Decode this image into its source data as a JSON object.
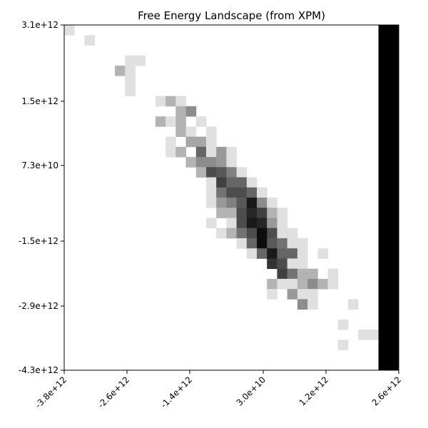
{
  "chart_data": {
    "type": "heatmap",
    "title": "Free Energy Landscape (from XPM)",
    "xlabel": "",
    "ylabel": "",
    "x_tick_labels": [
      "-3.8e+12",
      "-2.6e+12",
      "-1.4e+12",
      "3.0e+10",
      "1.2e+12",
      "2.6e+12"
    ],
    "y_tick_labels": [
      "3.1e+12",
      "1.5e+12",
      "7.3e+10",
      "-1.5e+12",
      "-2.9e+12",
      "-4.3e+12"
    ],
    "colormap": "gray",
    "grid": false,
    "legend": "none",
    "grid_cols": 33,
    "grid_rows": 34,
    "value_scale": "0 = darkest (black), 1 = lightest (white)",
    "cells": [
      [
        0,
        0,
        0.88
      ],
      [
        0,
        31,
        0
      ],
      [
        0,
        32,
        0
      ],
      [
        1,
        2,
        0.88
      ],
      [
        1,
        31,
        0
      ],
      [
        1,
        32,
        0
      ],
      [
        2,
        31,
        0
      ],
      [
        2,
        32,
        0
      ],
      [
        3,
        6,
        0.88
      ],
      [
        3,
        7,
        0.88
      ],
      [
        3,
        31,
        0
      ],
      [
        3,
        32,
        0
      ],
      [
        4,
        5,
        0.7
      ],
      [
        4,
        6,
        0.88
      ],
      [
        4,
        31,
        0
      ],
      [
        4,
        32,
        0
      ],
      [
        5,
        6,
        0.88
      ],
      [
        5,
        31,
        0
      ],
      [
        5,
        32,
        0
      ],
      [
        6,
        6,
        0.88
      ],
      [
        6,
        31,
        0
      ],
      [
        6,
        32,
        0
      ],
      [
        7,
        9,
        0.88
      ],
      [
        7,
        10,
        0.7
      ],
      [
        7,
        11,
        0.88
      ],
      [
        7,
        31,
        0
      ],
      [
        7,
        32,
        0
      ],
      [
        8,
        11,
        0.7
      ],
      [
        8,
        12,
        0.55
      ],
      [
        8,
        31,
        0
      ],
      [
        8,
        32,
        0
      ],
      [
        9,
        9,
        0.7
      ],
      [
        9,
        10,
        0.88
      ],
      [
        9,
        11,
        0.7
      ],
      [
        9,
        13,
        0.88
      ],
      [
        9,
        31,
        0
      ],
      [
        9,
        32,
        0
      ],
      [
        10,
        11,
        0.7
      ],
      [
        10,
        12,
        0.88
      ],
      [
        10,
        14,
        0.88
      ],
      [
        10,
        31,
        0
      ],
      [
        10,
        32,
        0
      ],
      [
        11,
        10,
        0.88
      ],
      [
        11,
        12,
        0.65
      ],
      [
        11,
        13,
        0.65
      ],
      [
        11,
        14,
        0.88
      ],
      [
        11,
        31,
        0
      ],
      [
        11,
        32,
        0
      ],
      [
        12,
        10,
        0.88
      ],
      [
        12,
        11,
        0.7
      ],
      [
        12,
        13,
        0.4
      ],
      [
        12,
        14,
        0.88
      ],
      [
        12,
        15,
        0.6
      ],
      [
        12,
        16,
        0.88
      ],
      [
        12,
        31,
        0
      ],
      [
        12,
        32,
        0
      ],
      [
        13,
        12,
        0.7
      ],
      [
        13,
        13,
        0.55
      ],
      [
        13,
        14,
        0.55
      ],
      [
        13,
        15,
        0.6
      ],
      [
        13,
        16,
        0.88
      ],
      [
        13,
        31,
        0
      ],
      [
        13,
        32,
        0
      ],
      [
        14,
        13,
        0.7
      ],
      [
        14,
        14,
        0.3
      ],
      [
        14,
        15,
        0.35
      ],
      [
        14,
        16,
        0.5
      ],
      [
        14,
        17,
        0.88
      ],
      [
        14,
        31,
        0
      ],
      [
        14,
        32,
        0
      ],
      [
        15,
        14,
        0.88
      ],
      [
        15,
        15,
        0.25
      ],
      [
        15,
        16,
        0.4
      ],
      [
        15,
        17,
        0.4
      ],
      [
        15,
        18,
        0.88
      ],
      [
        15,
        31,
        0
      ],
      [
        15,
        32,
        0
      ],
      [
        16,
        14,
        0.88
      ],
      [
        16,
        15,
        0.45
      ],
      [
        16,
        16,
        0.3
      ],
      [
        16,
        17,
        0.3
      ],
      [
        16,
        18,
        0.4
      ],
      [
        16,
        19,
        0.88
      ],
      [
        16,
        31,
        0
      ],
      [
        16,
        32,
        0
      ],
      [
        17,
        14,
        0.88
      ],
      [
        17,
        15,
        0.6
      ],
      [
        17,
        16,
        0.5
      ],
      [
        17,
        17,
        0.35
      ],
      [
        17,
        18,
        0.1
      ],
      [
        17,
        19,
        0.55
      ],
      [
        17,
        20,
        0.88
      ],
      [
        17,
        31,
        0
      ],
      [
        17,
        32,
        0
      ],
      [
        18,
        15,
        0.7
      ],
      [
        18,
        16,
        0.7
      ],
      [
        18,
        17,
        0.3
      ],
      [
        18,
        18,
        0.15
      ],
      [
        18,
        19,
        0.25
      ],
      [
        18,
        20,
        0.7
      ],
      [
        18,
        21,
        0.88
      ],
      [
        18,
        31,
        0
      ],
      [
        18,
        32,
        0
      ],
      [
        19,
        14,
        0.88
      ],
      [
        19,
        16,
        0.88
      ],
      [
        19,
        17,
        0.3
      ],
      [
        19,
        18,
        0.1
      ],
      [
        19,
        19,
        0.15
      ],
      [
        19,
        20,
        0.6
      ],
      [
        19,
        21,
        0.88
      ],
      [
        19,
        31,
        0
      ],
      [
        19,
        32,
        0
      ],
      [
        20,
        15,
        0.88
      ],
      [
        20,
        16,
        0.7
      ],
      [
        20,
        17,
        0.45
      ],
      [
        20,
        18,
        0.3
      ],
      [
        20,
        19,
        0.05
      ],
      [
        20,
        20,
        0.3
      ],
      [
        20,
        21,
        0.88
      ],
      [
        20,
        22,
        0.88
      ],
      [
        20,
        31,
        0
      ],
      [
        20,
        32,
        0
      ],
      [
        21,
        17,
        0.88
      ],
      [
        21,
        18,
        0.4
      ],
      [
        21,
        19,
        0.05
      ],
      [
        21,
        20,
        0.35
      ],
      [
        21,
        21,
        0.45
      ],
      [
        21,
        22,
        0.88
      ],
      [
        21,
        23,
        0.88
      ],
      [
        21,
        31,
        0
      ],
      [
        21,
        32,
        0
      ],
      [
        22,
        18,
        0.88
      ],
      [
        22,
        19,
        0.4
      ],
      [
        22,
        20,
        0.1
      ],
      [
        22,
        21,
        0.4
      ],
      [
        22,
        22,
        0.4
      ],
      [
        22,
        23,
        0.88
      ],
      [
        22,
        25,
        0.88
      ],
      [
        22,
        31,
        0
      ],
      [
        22,
        32,
        0
      ],
      [
        23,
        20,
        0.2
      ],
      [
        23,
        21,
        0.3
      ],
      [
        23,
        22,
        0.88
      ],
      [
        23,
        23,
        0.88
      ],
      [
        23,
        31,
        0
      ],
      [
        23,
        32,
        0
      ],
      [
        24,
        21,
        0.25
      ],
      [
        24,
        22,
        0.45
      ],
      [
        24,
        23,
        0.7
      ],
      [
        24,
        24,
        0.7
      ],
      [
        24,
        26,
        0.88
      ],
      [
        24,
        31,
        0
      ],
      [
        24,
        32,
        0
      ],
      [
        25,
        20,
        0.7
      ],
      [
        25,
        21,
        0.88
      ],
      [
        25,
        22,
        0.88
      ],
      [
        25,
        23,
        0.7
      ],
      [
        25,
        24,
        0.55
      ],
      [
        25,
        25,
        0.7
      ],
      [
        25,
        26,
        0.88
      ],
      [
        25,
        31,
        0
      ],
      [
        25,
        32,
        0
      ],
      [
        26,
        20,
        0.88
      ],
      [
        26,
        22,
        0.6
      ],
      [
        26,
        23,
        0.88
      ],
      [
        26,
        24,
        0.88
      ],
      [
        26,
        31,
        0
      ],
      [
        26,
        32,
        0
      ],
      [
        27,
        23,
        0.55
      ],
      [
        27,
        24,
        0.88
      ],
      [
        27,
        28,
        0.88
      ],
      [
        27,
        31,
        0
      ],
      [
        27,
        32,
        0
      ],
      [
        28,
        31,
        0
      ],
      [
        28,
        32,
        0
      ],
      [
        29,
        27,
        0.88
      ],
      [
        29,
        31,
        0
      ],
      [
        29,
        32,
        0
      ],
      [
        30,
        29,
        0.88
      ],
      [
        30,
        30,
        0.88
      ],
      [
        30,
        31,
        0
      ],
      [
        30,
        32,
        0
      ],
      [
        31,
        27,
        0.88
      ],
      [
        31,
        31,
        0
      ],
      [
        31,
        32,
        0
      ],
      [
        32,
        31,
        0
      ],
      [
        32,
        32,
        0
      ],
      [
        33,
        31,
        0
      ],
      [
        33,
        32,
        0
      ]
    ]
  }
}
